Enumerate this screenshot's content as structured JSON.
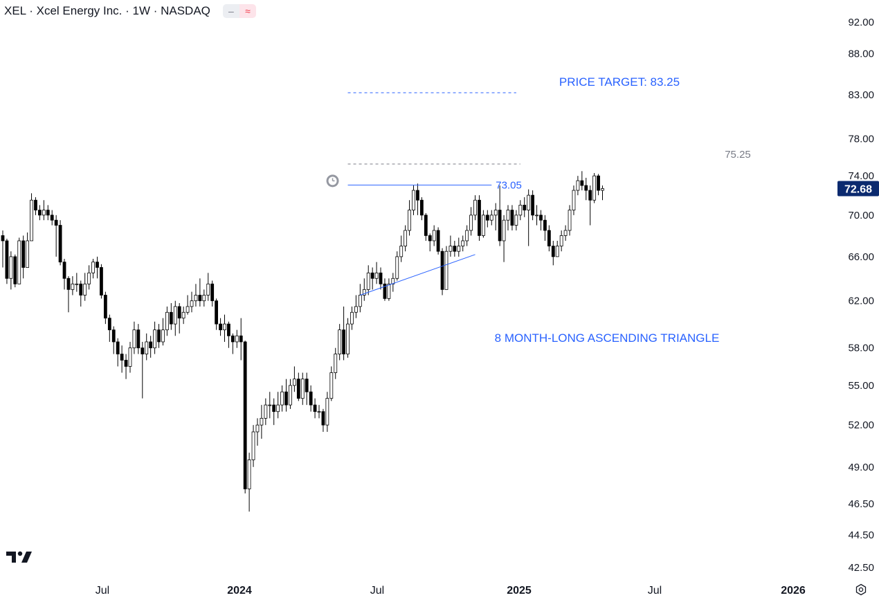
{
  "header": {
    "title": "XEL · Xcel Energy Inc. · 1W · NASDAQ",
    "badge_minus": "–",
    "badge_wave": "≈"
  },
  "icons": {
    "alert": "alarm-clock-icon",
    "logo": "tradingview-logo-icon",
    "settings": "settings-icon"
  },
  "colors": {
    "up_body": "#ffffff",
    "down_body": "#000000",
    "wick": "#000000",
    "annotation": "#2962ff",
    "resistance_grey": "#787b86",
    "price_label_bg": "#0b2a6f"
  },
  "chart_data": {
    "type": "candlestick",
    "title": "XEL · Xcel Energy Inc. · 1W · NASDAQ",
    "x_ticks": [
      "Jul",
      "2024",
      "Jul",
      "2025",
      "Jul",
      "2026"
    ],
    "y_ticks": [
      "92.00",
      "88.00",
      "83.00",
      "78.00",
      "74.00",
      "70.00",
      "66.00",
      "62.00",
      "58.00",
      "55.00",
      "52.00",
      "49.00",
      "46.50",
      "44.50",
      "42.50"
    ],
    "y_scale": "log",
    "ylim": [
      42,
      94
    ],
    "grid": false,
    "current_price": "72.68",
    "annotations": {
      "price_target_text": "PRICE TARGET: 83.25",
      "price_target_value": 83.25,
      "resistance_value": 75.25,
      "resistance_label": "75.25",
      "triangle_top_value": 73.05,
      "triangle_top_label": "73.05",
      "triangle_text": "8 MONTH-LONG ASCENDING TRIANGLE",
      "support_line": {
        "from": [
          87,
          62.5
        ],
        "to": [
          115,
          66.2
        ]
      },
      "triangle_top_range": [
        84,
        119
      ],
      "price_target_range": [
        84,
        125
      ],
      "resistance_range": [
        84,
        126
      ]
    },
    "candles": [
      [
        68.0,
        67.5,
        68.5,
        65.0
      ],
      [
        67.5,
        64.0,
        67.7,
        63.5
      ],
      [
        64.0,
        66.0,
        66.5,
        63.0
      ],
      [
        66.0,
        63.5,
        66.2,
        63.2
      ],
      [
        63.5,
        67.5,
        67.8,
        63.5
      ],
      [
        67.5,
        65.0,
        68.0,
        64.0
      ],
      [
        65.0,
        67.5,
        68.3,
        65.0
      ],
      [
        67.5,
        71.5,
        72.2,
        67.5
      ],
      [
        71.5,
        70.5,
        71.8,
        70.0
      ],
      [
        70.5,
        70.0,
        71.0,
        69.5
      ],
      [
        70.0,
        70.5,
        71.5,
        69.5
      ],
      [
        70.5,
        70.0,
        71.0,
        69.5
      ],
      [
        70.0,
        69.5,
        70.5,
        69.0
      ],
      [
        69.5,
        69.0,
        70.0,
        66.0
      ],
      [
        69.0,
        65.5,
        69.5,
        65.2
      ],
      [
        65.5,
        64.0,
        65.8,
        63.0
      ],
      [
        64.0,
        63.0,
        64.2,
        61.0
      ],
      [
        63.0,
        63.5,
        64.2,
        62.5
      ],
      [
        63.5,
        63.5,
        64.5,
        62.8
      ],
      [
        63.5,
        62.5,
        63.8,
        61.5
      ],
      [
        62.5,
        63.5,
        64.5,
        62.0
      ],
      [
        63.5,
        64.5,
        65.2,
        63.0
      ],
      [
        64.5,
        65.5,
        65.8,
        64.0
      ],
      [
        65.5,
        65.0,
        66.0,
        64.0
      ],
      [
        65.0,
        62.5,
        65.3,
        62.2
      ],
      [
        62.5,
        60.5,
        62.8,
        60.0
      ],
      [
        60.5,
        59.5,
        60.8,
        58.5
      ],
      [
        59.5,
        58.5,
        59.8,
        57.5
      ],
      [
        58.5,
        57.5,
        58.8,
        56.5
      ],
      [
        57.5,
        57.0,
        58.2,
        56.0
      ],
      [
        57.0,
        56.5,
        57.5,
        55.5
      ],
      [
        56.5,
        58.0,
        58.5,
        56.0
      ],
      [
        58.0,
        59.5,
        60.2,
        57.5
      ],
      [
        59.5,
        58.0,
        60.0,
        57.5
      ],
      [
        58.0,
        57.5,
        58.5,
        54.0
      ],
      [
        57.5,
        58.5,
        59.2,
        57.0
      ],
      [
        58.5,
        58.0,
        59.0,
        57.2
      ],
      [
        58.0,
        59.5,
        60.2,
        57.5
      ],
      [
        59.5,
        58.5,
        60.0,
        58.0
      ],
      [
        58.5,
        59.5,
        60.5,
        58.2
      ],
      [
        59.5,
        61.0,
        61.5,
        59.0
      ],
      [
        61.0,
        60.0,
        61.8,
        59.5
      ],
      [
        60.0,
        61.5,
        62.0,
        59.0
      ],
      [
        61.5,
        60.5,
        61.8,
        59.2
      ],
      [
        60.5,
        61.0,
        61.5,
        60.0
      ],
      [
        61.0,
        61.5,
        62.5,
        60.8
      ],
      [
        61.5,
        62.0,
        62.8,
        61.0
      ],
      [
        62.0,
        62.5,
        63.5,
        61.5
      ],
      [
        62.5,
        62.0,
        64.0,
        61.5
      ],
      [
        62.0,
        62.5,
        63.0,
        61.5
      ],
      [
        62.5,
        63.5,
        64.5,
        62.0
      ],
      [
        63.5,
        62.0,
        63.8,
        61.5
      ],
      [
        62.0,
        60.0,
        62.2,
        59.5
      ],
      [
        60.0,
        59.5,
        60.5,
        59.0
      ],
      [
        59.5,
        60.0,
        60.8,
        58.5
      ],
      [
        60.0,
        59.0,
        60.2,
        58.0
      ],
      [
        59.0,
        58.5,
        59.2,
        57.5
      ],
      [
        58.5,
        59.0,
        59.5,
        58.0
      ],
      [
        59.0,
        58.5,
        60.5,
        57.0
      ],
      [
        58.5,
        47.5,
        58.6,
        47.2
      ],
      [
        47.5,
        49.5,
        50.0,
        46.0
      ],
      [
        49.5,
        51.5,
        52.0,
        49.0
      ],
      [
        51.5,
        52.0,
        52.5,
        50.5
      ],
      [
        52.0,
        52.5,
        53.5,
        51.0
      ],
      [
        52.5,
        53.5,
        54.0,
        52.0
      ],
      [
        53.5,
        53.5,
        54.5,
        52.5
      ],
      [
        53.5,
        53.0,
        54.0,
        52.0
      ],
      [
        53.0,
        53.5,
        54.5,
        52.5
      ],
      [
        53.5,
        54.5,
        55.0,
        53.0
      ],
      [
        54.5,
        53.5,
        55.5,
        53.0
      ],
      [
        53.5,
        55.0,
        55.5,
        53.2
      ],
      [
        55.0,
        55.5,
        56.5,
        54.5
      ],
      [
        55.5,
        54.0,
        56.0,
        53.8
      ],
      [
        54.0,
        55.5,
        56.0,
        53.5
      ],
      [
        55.5,
        54.5,
        56.0,
        53.5
      ],
      [
        54.5,
        53.5,
        55.0,
        53.0
      ],
      [
        53.5,
        53.0,
        54.0,
        52.5
      ],
      [
        53.0,
        53.0,
        53.5,
        52.5
      ],
      [
        53.0,
        52.0,
        53.2,
        51.5
      ],
      [
        52.0,
        54.0,
        54.5,
        51.5
      ],
      [
        54.0,
        56.0,
        56.5,
        53.8
      ],
      [
        56.0,
        57.5,
        58.0,
        55.5
      ],
      [
        57.5,
        59.5,
        60.0,
        57.0
      ],
      [
        59.5,
        57.5,
        61.5,
        57.0
      ],
      [
        57.5,
        60.0,
        60.5,
        57.2
      ],
      [
        60.0,
        61.0,
        61.5,
        59.5
      ],
      [
        61.0,
        61.5,
        62.5,
        60.5
      ],
      [
        61.5,
        62.5,
        63.5,
        61.0
      ],
      [
        62.5,
        63.0,
        64.0,
        62.0
      ],
      [
        63.0,
        64.5,
        65.2,
        62.5
      ],
      [
        64.5,
        64.0,
        65.0,
        63.0
      ],
      [
        64.0,
        64.5,
        65.5,
        63.5
      ],
      [
        64.5,
        63.5,
        65.0,
        63.0
      ],
      [
        63.5,
        62.2,
        64.0,
        62.0
      ],
      [
        62.2,
        63.5,
        64.0,
        62.0
      ],
      [
        63.5,
        64.0,
        64.5,
        62.8
      ],
      [
        64.0,
        66.0,
        66.5,
        63.8
      ],
      [
        66.0,
        67.0,
        68.0,
        65.5
      ],
      [
        67.0,
        68.5,
        69.0,
        66.5
      ],
      [
        68.5,
        70.5,
        71.5,
        68.0
      ],
      [
        70.5,
        72.5,
        73.0,
        70.0
      ],
      [
        72.5,
        71.5,
        73.2,
        70.0
      ],
      [
        71.5,
        70.0,
        71.8,
        69.5
      ],
      [
        70.0,
        68.0,
        70.2,
        67.5
      ],
      [
        68.0,
        67.5,
        68.2,
        66.5
      ],
      [
        67.5,
        68.5,
        69.0,
        67.0
      ],
      [
        68.5,
        66.5,
        68.8,
        66.2
      ],
      [
        66.5,
        63.0,
        66.8,
        62.5
      ],
      [
        63.0,
        66.5,
        67.0,
        63.0
      ],
      [
        66.5,
        67.0,
        68.0,
        66.0
      ],
      [
        67.0,
        66.5,
        67.5,
        66.0
      ],
      [
        66.5,
        67.0,
        67.8,
        66.0
      ],
      [
        67.0,
        67.5,
        68.0,
        66.5
      ],
      [
        67.5,
        68.5,
        69.0,
        67.0
      ],
      [
        68.5,
        70.0,
        70.8,
        68.0
      ],
      [
        70.0,
        71.5,
        72.0,
        69.5
      ],
      [
        71.5,
        68.0,
        72.0,
        67.5
      ],
      [
        68.0,
        70.0,
        70.5,
        67.8
      ],
      [
        70.0,
        69.5,
        70.5,
        68.8
      ],
      [
        69.5,
        70.0,
        70.5,
        69.0
      ],
      [
        70.0,
        70.5,
        71.2,
        68.5
      ],
      [
        70.5,
        67.5,
        73.0,
        67.0
      ],
      [
        67.5,
        69.5,
        70.0,
        65.5
      ],
      [
        69.5,
        70.5,
        71.0,
        68.5
      ],
      [
        70.5,
        69.0,
        71.0,
        68.5
      ],
      [
        69.0,
        70.0,
        70.5,
        68.5
      ],
      [
        70.0,
        71.0,
        71.5,
        69.5
      ],
      [
        71.0,
        70.5,
        71.8,
        69.8
      ],
      [
        70.5,
        72.0,
        72.6,
        67.0
      ],
      [
        72.0,
        70.0,
        72.5,
        69.5
      ],
      [
        70.0,
        70.0,
        71.0,
        69.0
      ],
      [
        70.0,
        69.5,
        70.5,
        68.5
      ],
      [
        69.5,
        68.5,
        70.0,
        67.5
      ],
      [
        68.5,
        67.0,
        69.0,
        66.5
      ],
      [
        67.0,
        66.0,
        67.5,
        65.2
      ],
      [
        66.0,
        67.0,
        67.5,
        66.0
      ],
      [
        67.0,
        68.0,
        68.5,
        66.5
      ],
      [
        68.0,
        68.5,
        69.0,
        67.5
      ],
      [
        68.5,
        70.5,
        71.0,
        68.0
      ],
      [
        70.5,
        72.5,
        73.0,
        70.0
      ],
      [
        72.5,
        73.5,
        74.0,
        72.0
      ],
      [
        73.5,
        73.0,
        74.5,
        72.5
      ],
      [
        73.0,
        72.5,
        73.8,
        71.5
      ],
      [
        72.5,
        71.5,
        73.0,
        69.0
      ],
      [
        71.5,
        74.0,
        74.3,
        71.2
      ],
      [
        74.0,
        72.5,
        74.2,
        72.0
      ],
      [
        72.5,
        72.68,
        73.0,
        71.5
      ]
    ]
  }
}
